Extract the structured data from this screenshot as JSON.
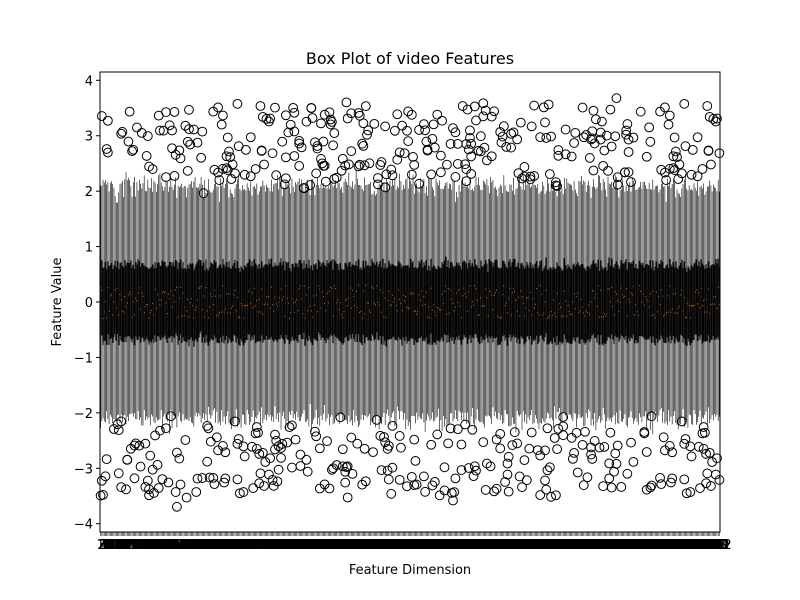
{
  "chart_data": {
    "type": "box",
    "title": "Box Plot of video Features",
    "xlabel": "Feature Dimension",
    "ylabel": "Feature Value",
    "ylim": [
      -4.15,
      4.15
    ],
    "yticks": [
      -4,
      -3,
      -2,
      -1,
      0,
      1,
      2,
      3,
      4
    ],
    "n_features": 512,
    "x_tick_labels_note": "1..512 (overlapping, illegible)",
    "summary_all_features": {
      "median_range": [
        -0.3,
        0.3
      ],
      "q1_typical": -0.67,
      "q3_typical": 0.67,
      "whisker_low_typical": -2.1,
      "whisker_high_typical": 2.1,
      "outlier_range": [
        -3.75,
        3.77
      ]
    },
    "colors": {
      "box": "#000000",
      "median": "#ff7f0e",
      "outlier_edge": "#000000"
    }
  }
}
